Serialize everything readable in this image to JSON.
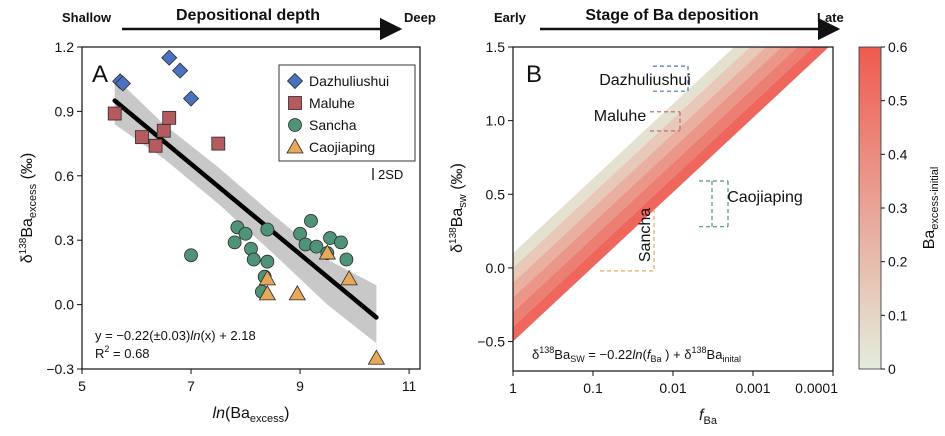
{
  "chart_data": [
    {
      "type": "scatter",
      "panel": "A",
      "header": {
        "title": "Depositional depth",
        "left": "Shallow",
        "right": "Deep"
      },
      "xlabel_pre": "ln",
      "xlabel_post": "(Ba",
      "xlabel_sub": "excess",
      "xlabel_close": ")",
      "ylabel_pre": "δ",
      "ylabel_sup": "138",
      "ylabel_mid": "Ba",
      "ylabel_sub": "excess",
      "ylabel_post": " (‰)",
      "xlim": [
        5,
        11.2
      ],
      "ylim": [
        -0.3,
        1.2
      ],
      "xticks": [
        "5",
        "7",
        "9",
        "11"
      ],
      "xtick_values": [
        5,
        7,
        9,
        11
      ],
      "yticks": [
        "−0.3",
        "0.0",
        "0.3",
        "0.6",
        "0.9",
        "1.2"
      ],
      "ytick_values": [
        -0.3,
        0.0,
        0.3,
        0.6,
        0.9,
        1.2
      ],
      "error_label": "2SD",
      "equation": {
        "pre": "y = −0.22(±0.03)",
        "ln": "ln",
        "post": "(x) + 2.18",
        "r2_pre": "R",
        "r2_sup": "2",
        "r2_post": " = 0.68"
      },
      "fit_line": {
        "x": [
          5.6,
          10.4
        ],
        "y": [
          0.95,
          -0.06
        ]
      },
      "confidence_band": {
        "x": [
          5.6,
          6.5,
          7.5,
          8.5,
          9.5,
          10.4
        ],
        "upper": [
          1.06,
          0.84,
          0.64,
          0.42,
          0.21,
          0.09
        ],
        "lower": [
          0.84,
          0.68,
          0.47,
          0.24,
          0.0,
          -0.18
        ]
      },
      "legend": {
        "position": "top-right"
      },
      "series": [
        {
          "name": "Dazhuliushui",
          "marker": "diamond",
          "color": "#4a72c0",
          "x": [
            5.7,
            6.6,
            6.8,
            7.0,
            5.75
          ],
          "y": [
            1.04,
            1.15,
            1.09,
            0.96,
            1.03
          ]
        },
        {
          "name": "Maluhe",
          "marker": "square",
          "color": "#b55a5e",
          "x": [
            5.6,
            6.1,
            6.35,
            6.5,
            6.6,
            7.5
          ],
          "y": [
            0.89,
            0.78,
            0.74,
            0.81,
            0.87,
            0.75
          ]
        },
        {
          "name": "Sancha",
          "marker": "circle",
          "color": "#4f9378",
          "x": [
            7.0,
            7.8,
            7.85,
            8.0,
            8.1,
            8.15,
            8.3,
            8.35,
            8.4,
            8.4,
            9.0,
            9.1,
            9.2,
            9.3,
            9.5,
            9.55,
            9.75,
            9.85
          ],
          "y": [
            0.23,
            0.29,
            0.36,
            0.33,
            0.26,
            0.21,
            0.06,
            0.13,
            0.2,
            0.35,
            0.33,
            0.28,
            0.39,
            0.27,
            0.24,
            0.31,
            0.29,
            0.21
          ]
        },
        {
          "name": "Caojiaping",
          "marker": "triangle",
          "color": "#e8a85a",
          "x": [
            8.4,
            8.4,
            8.95,
            9.5,
            9.9,
            10.4
          ],
          "y": [
            0.05,
            0.12,
            0.05,
            0.24,
            0.12,
            -0.25
          ]
        }
      ]
    },
    {
      "type": "area",
      "panel": "B",
      "header": {
        "title": "Stage of Ba deposition",
        "left": "Early",
        "right": "Late"
      },
      "xlabel": "f",
      "xlabel_sub": "Ba",
      "x_scale": "log-reversed",
      "xlim": [
        1,
        0.0001
      ],
      "xticks": [
        "1",
        "0.1",
        "0.01",
        "0.001",
        "0.0001"
      ],
      "xtick_values": [
        1,
        0.1,
        0.01,
        0.001,
        0.0001
      ],
      "ylabel_pre": "δ",
      "ylabel_sup": "138",
      "ylabel_mid": "Ba",
      "ylabel_sub": "sw",
      "ylabel_post": " (‰)",
      "ylim": [
        -0.7,
        1.5
      ],
      "yticks": [
        "−0.5",
        "0.0",
        "0.5",
        "1.0",
        "1.5"
      ],
      "ytick_values": [
        -0.5,
        0.0,
        0.5,
        1.0,
        1.5
      ],
      "model": {
        "slope": -0.22,
        "initial_min": -0.5,
        "initial_max": 0.1,
        "equation_pre": "δ",
        "equation_sup": "138",
        "equation_mid": "Ba",
        "equation_sub": "SW",
        "equation_mid2": " = −0.22",
        "equation_ln": "ln",
        "equation_mid3": "(",
        "equation_f": "f",
        "equation_fsub": "Ba",
        "equation_mid4": " ) + δ",
        "equation_sup2": "138",
        "equation_mid5": "Ba",
        "equation_sub2": "inital"
      },
      "ranges": [
        {
          "name": "Dazhuliushui",
          "color": "#4a72c0",
          "y": [
            1.2,
            1.37
          ],
          "orientation": "horizontal"
        },
        {
          "name": "Maluhe",
          "color": "#c0606a",
          "y": [
            0.93,
            1.06
          ],
          "orientation": "horizontal"
        },
        {
          "name": "Caojiaping",
          "color": "#4f9378",
          "y": [
            0.28,
            0.59
          ],
          "orientation": "horizontal"
        },
        {
          "name": "Sancha",
          "color": "#e8a85a",
          "y": [
            -0.02,
            0.4
          ],
          "orientation": "vertical"
        }
      ],
      "colorbar": {
        "label_pre": "Ba",
        "label_sub": "excess-initial",
        "ticks": [
          "0",
          "0.1",
          "0.2",
          "0.3",
          "0.4",
          "0.5",
          "0.6"
        ],
        "tick_values": [
          0,
          0.1,
          0.2,
          0.3,
          0.4,
          0.5,
          0.6
        ],
        "color_low": "#e4eddc",
        "color_high": "#ef5a50"
      }
    }
  ]
}
